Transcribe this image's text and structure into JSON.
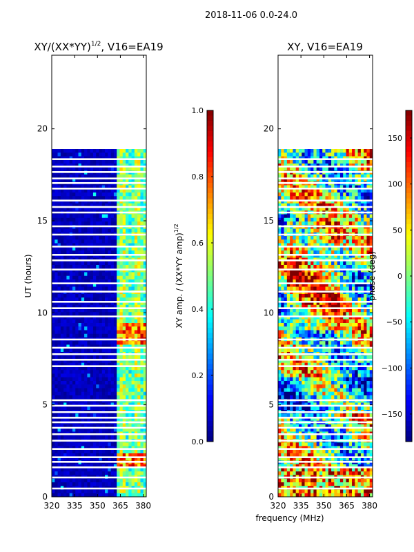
{
  "figure": {
    "suptitle": "2018-11-06 0.0-24.0",
    "xlabel": "frequency (MHz)"
  },
  "colors": {
    "jet": [
      "#00007f",
      "#0000ff",
      "#007fff",
      "#00ffff",
      "#7fff7f",
      "#ffff00",
      "#ff7f00",
      "#ff0000",
      "#7f0000"
    ],
    "gap": "#ffffff",
    "axis": "#000000"
  },
  "chart_data": [
    {
      "type": "heatmap",
      "title_main": "XY/(XX*YY)",
      "title_sup": "1/2",
      "title_tail": ", V16=EA19",
      "ylabel": "UT (hours)",
      "xlim": [
        320,
        382
      ],
      "ylim": [
        0,
        24
      ],
      "xticks": [
        "320",
        "335",
        "350",
        "365",
        "380"
      ],
      "xtick_values": [
        320,
        335,
        350,
        365,
        380
      ],
      "yticks": [
        "0",
        "5",
        "10",
        "15",
        "20"
      ],
      "ytick_values": [
        0,
        5,
        10,
        15,
        20
      ],
      "data_ut_range": [
        0,
        18.9
      ],
      "colorbar": {
        "label_main": "XY amp. / (XX*YY amp)",
        "label_sup": "1/2",
        "range": [
          0,
          1
        ],
        "ticks": [
          "0.0",
          "0.2",
          "0.4",
          "0.6",
          "0.8",
          "1.0"
        ],
        "tick_values": [
          0,
          0.2,
          0.4,
          0.6,
          0.8,
          1.0
        ]
      },
      "mode": "amp"
    },
    {
      "type": "heatmap",
      "title_main": "XY, V16=EA19",
      "title_sup": "",
      "title_tail": "",
      "ylabel": "",
      "xlim": [
        320,
        382
      ],
      "ylim": [
        0,
        24
      ],
      "xticks": [
        "320",
        "335",
        "350",
        "365",
        "380"
      ],
      "xtick_values": [
        320,
        335,
        350,
        365,
        380
      ],
      "yticks": [
        "0",
        "5",
        "10",
        "15",
        "20"
      ],
      "ytick_values": [
        0,
        5,
        10,
        15,
        20
      ],
      "data_ut_range": [
        0,
        18.9
      ],
      "colorbar": {
        "label_main": "phase (deg)",
        "label_sup": "",
        "range": [
          -180,
          180
        ],
        "ticks": [
          "−150",
          "−100",
          "−50",
          "0",
          "50",
          "100",
          "150"
        ],
        "tick_values": [
          -150,
          -100,
          -50,
          0,
          50,
          100,
          150
        ]
      },
      "mode": "phase"
    }
  ],
  "gaps_ut": [
    0.45,
    1.05,
    1.6,
    1.9,
    2.15,
    2.6,
    3.05,
    3.4,
    3.75,
    4.05,
    4.3,
    4.6,
    4.95,
    5.25,
    7.1,
    7.45,
    7.75,
    8.1,
    8.55,
    9.8,
    10.25,
    10.6,
    11.15,
    11.6,
    12.35,
    12.85,
    13.15,
    13.6,
    14.25,
    14.7,
    15.45,
    15.75,
    16.1,
    16.75,
    17.05,
    17.3,
    17.65,
    17.95,
    18.35
  ]
}
